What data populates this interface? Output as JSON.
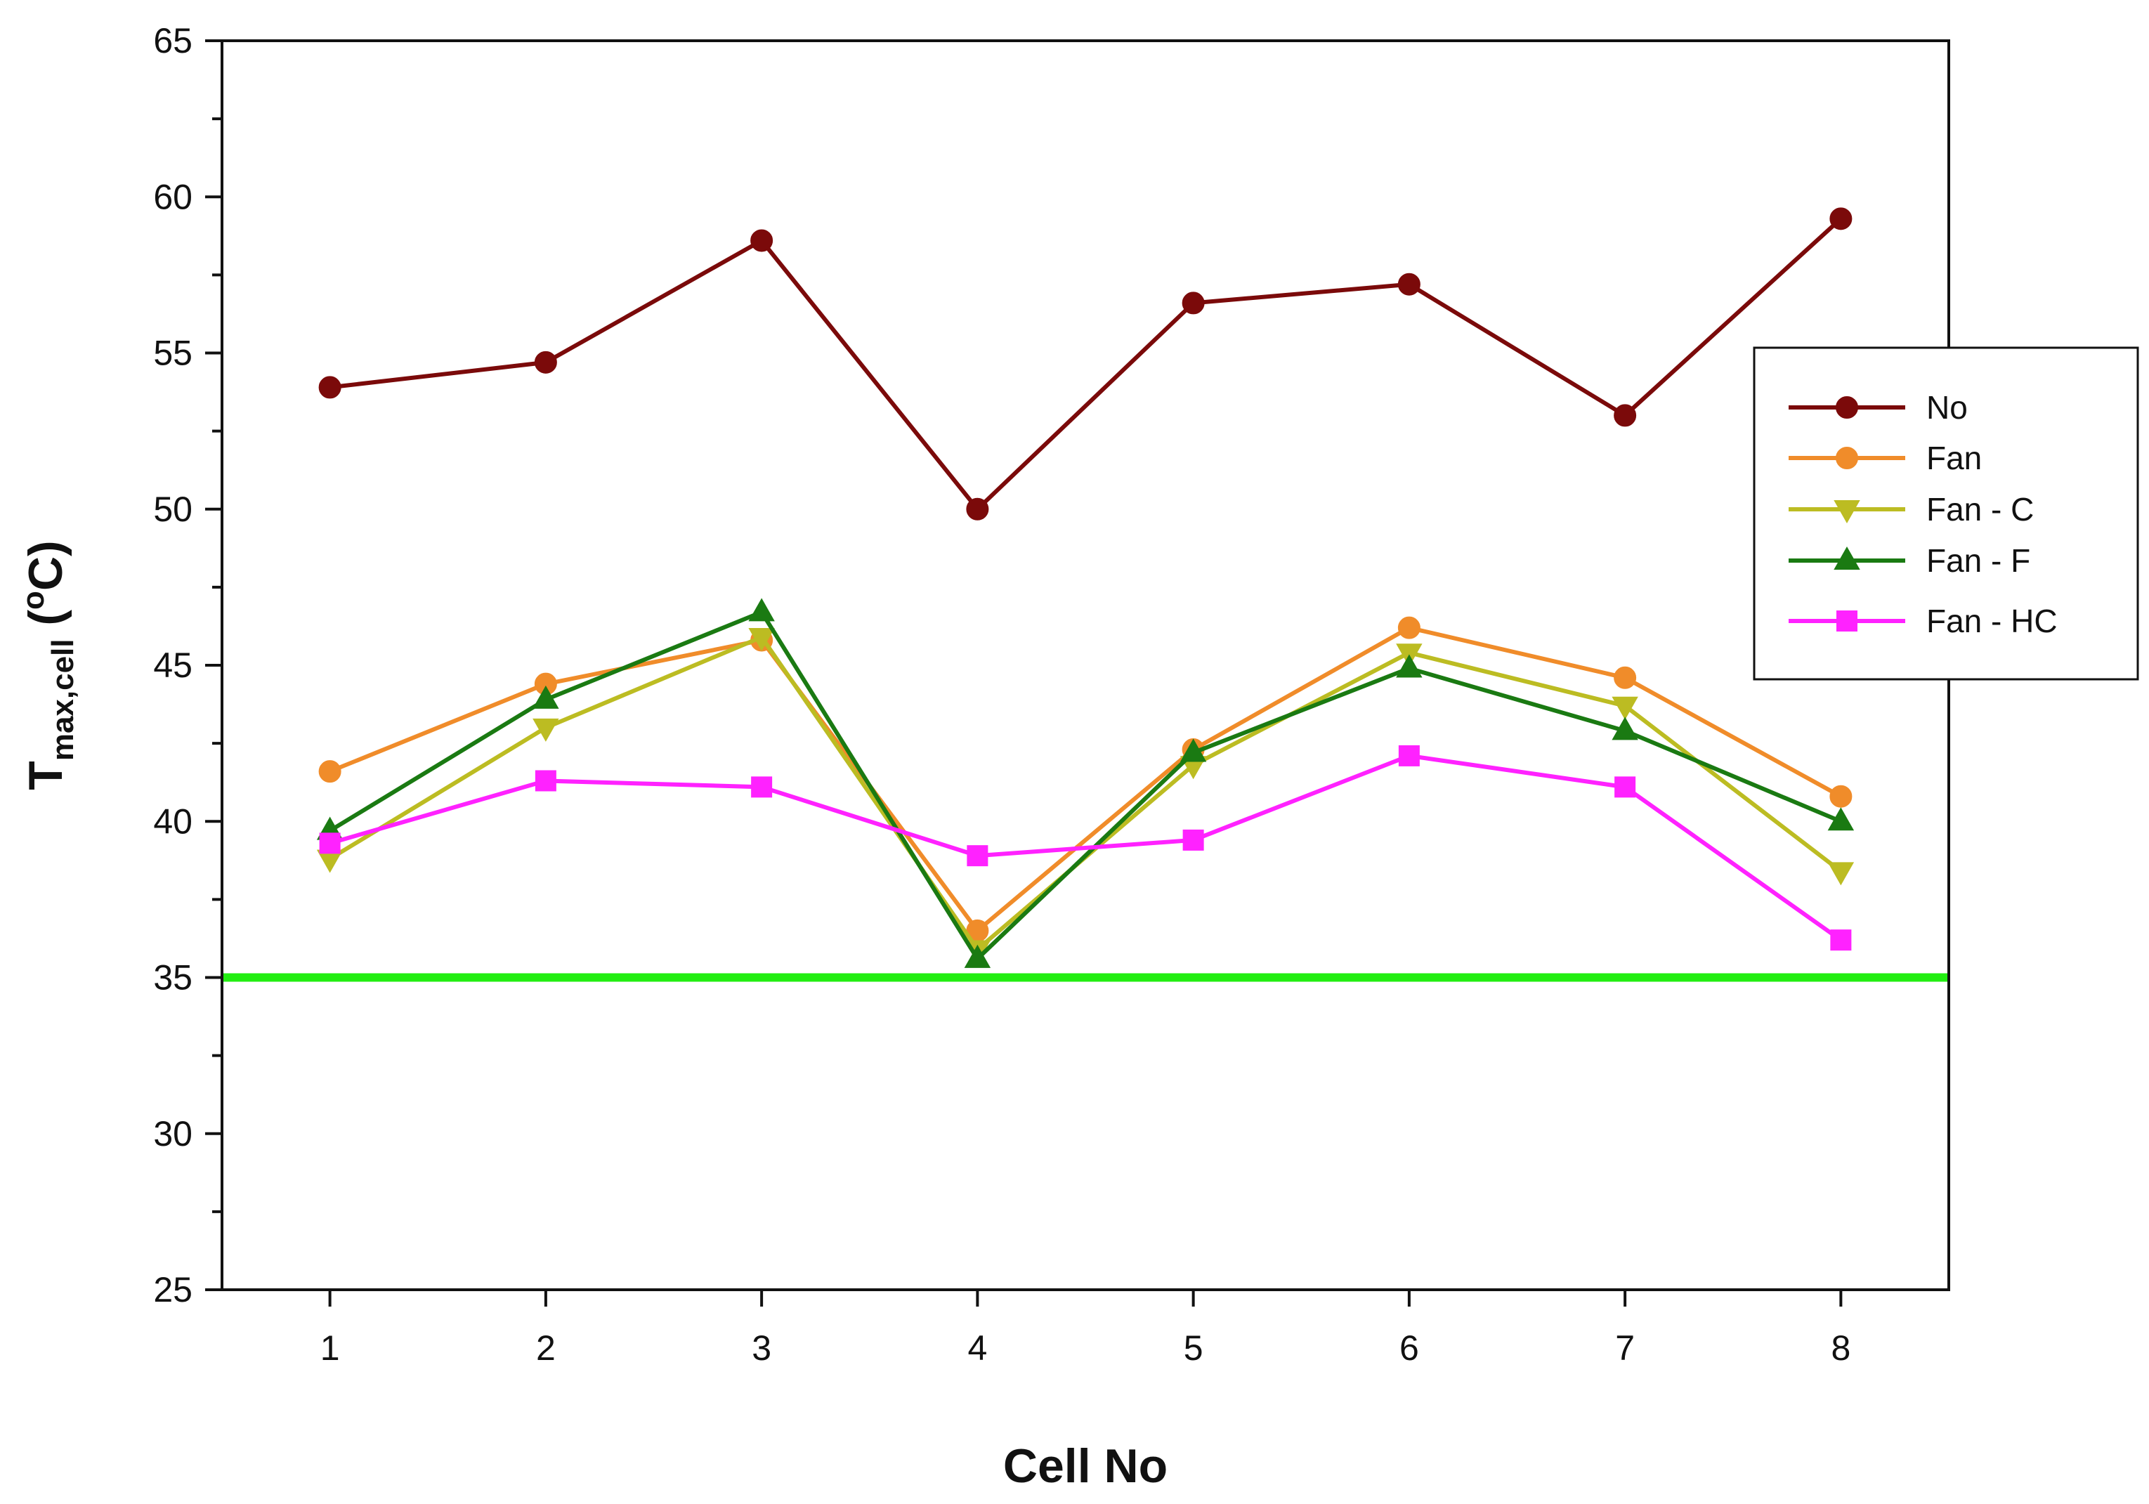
{
  "chart_data": {
    "type": "line",
    "x": [
      1,
      2,
      3,
      4,
      5,
      6,
      7,
      8
    ],
    "xlabel": "Cell No",
    "ylabel": {
      "main": "T",
      "subscript": "max,cell",
      "unit_open": " (",
      "unit_sup": "o",
      "unit_rest": "C)"
    },
    "xlim": [
      0.5,
      8.5
    ],
    "ylim": [
      25,
      65
    ],
    "y_ticks": [
      25,
      30,
      35,
      40,
      45,
      50,
      55,
      60,
      65
    ],
    "x_ticks": [
      1,
      2,
      3,
      4,
      5,
      6,
      7,
      8
    ],
    "grid": false,
    "legend_position": "right",
    "reference_line": {
      "y": 35,
      "color": "#22ee11"
    },
    "series": [
      {
        "name": "No",
        "color": "#7b0a0a",
        "marker": "circle",
        "values": [
          53.9,
          54.7,
          58.6,
          50.0,
          56.6,
          57.2,
          53.0,
          59.3
        ]
      },
      {
        "name": "Fan",
        "color": "#f08c2a",
        "marker": "circle",
        "values": [
          41.6,
          44.4,
          45.8,
          36.5,
          42.3,
          46.2,
          44.6,
          40.8
        ]
      },
      {
        "name": "Fan - C",
        "color": "#bcbc22",
        "marker": "triangle-down",
        "values": [
          38.8,
          43.0,
          45.9,
          35.9,
          41.8,
          45.4,
          43.7,
          38.4
        ]
      },
      {
        "name": "Fan - F",
        "color": "#1a7a12",
        "marker": "triangle-up",
        "values": [
          39.7,
          43.9,
          46.7,
          35.6,
          42.2,
          44.9,
          42.9,
          40.0
        ]
      },
      {
        "name": "Fan - HC",
        "color": "#ff22ff",
        "marker": "square",
        "values": [
          39.3,
          41.3,
          41.1,
          38.9,
          39.4,
          42.1,
          41.1,
          36.2
        ]
      }
    ]
  }
}
